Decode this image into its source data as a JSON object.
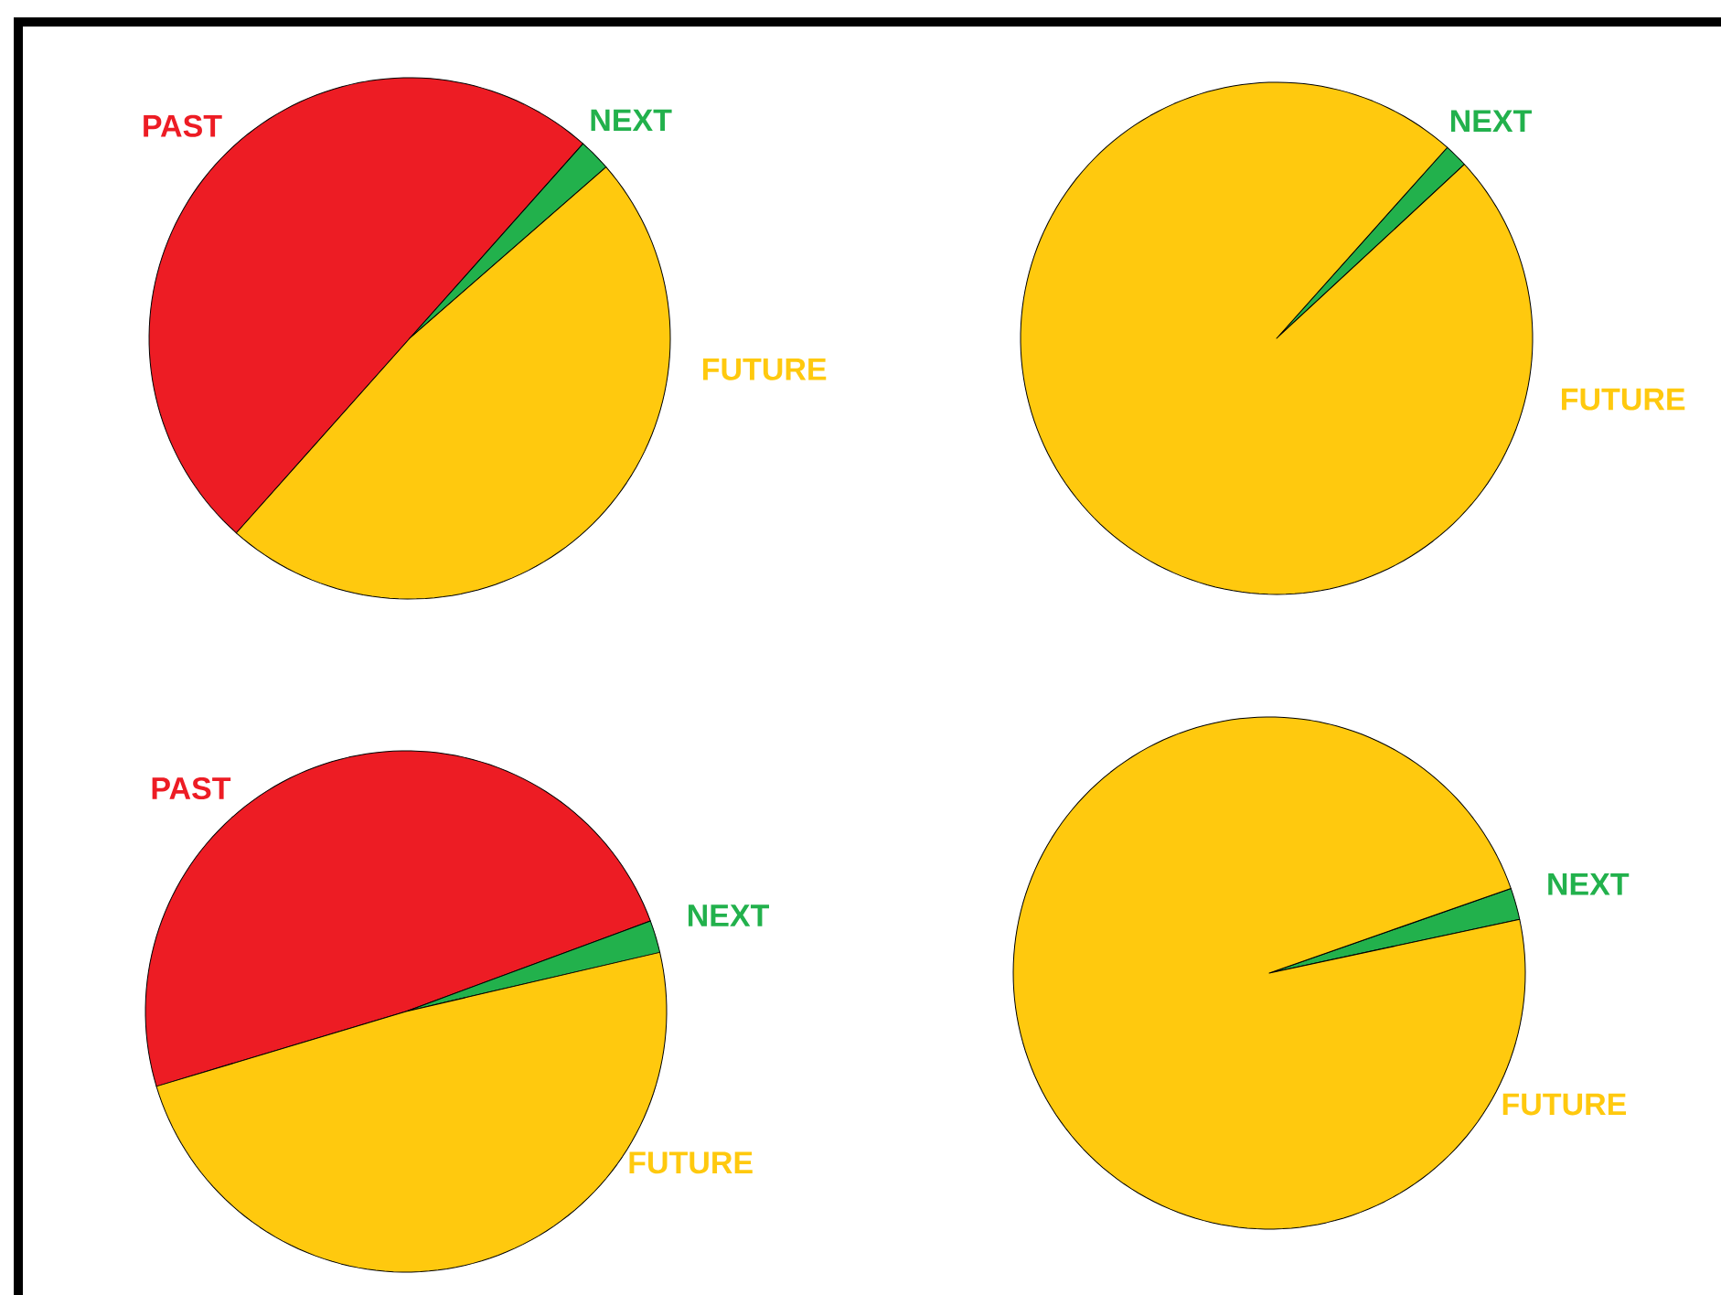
{
  "chart_data": [
    {
      "type": "pie",
      "categories": [
        "PAST",
        "NEXT",
        "FUTURE"
      ],
      "values": [
        50,
        2,
        48
      ],
      "colors": [
        "#ed1c24",
        "#22b14c",
        "#ffc90e"
      ]
    },
    {
      "type": "pie",
      "categories": [
        "NEXT",
        "FUTURE"
      ],
      "values": [
        1.5,
        98.5
      ],
      "colors": [
        "#22b14c",
        "#ffc90e"
      ]
    },
    {
      "type": "pie",
      "categories": [
        "PAST",
        "NEXT",
        "FUTURE"
      ],
      "values": [
        49,
        2,
        49
      ],
      "colors": [
        "#ed1c24",
        "#22b14c",
        "#ffc90e"
      ]
    },
    {
      "type": "pie",
      "categories": [
        "NEXT",
        "FUTURE"
      ],
      "values": [
        2,
        98
      ],
      "colors": [
        "#22b14c",
        "#ffc90e"
      ]
    }
  ]
}
